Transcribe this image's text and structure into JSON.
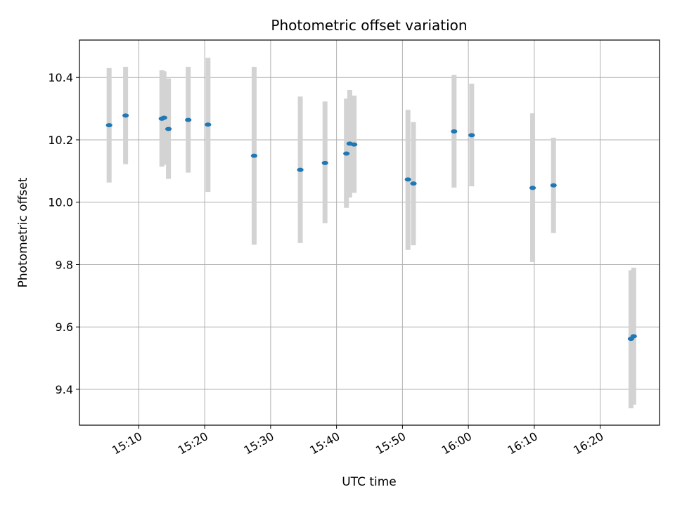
{
  "chart_data": {
    "type": "scatter",
    "title": "Photometric offset variation",
    "xlabel": "UTC time",
    "ylabel": "Photometric offset",
    "x_axis_type": "time",
    "xlim": [
      "15:01",
      "16:29"
    ],
    "ylim": [
      9.285,
      10.52
    ],
    "x_ticks": [
      "15:10",
      "15:20",
      "15:30",
      "15:40",
      "15:50",
      "16:00",
      "16:10",
      "16:20"
    ],
    "y_ticks": [
      9.4,
      9.6,
      9.8,
      10.0,
      10.2,
      10.4
    ],
    "y_tick_labels": [
      "9.4",
      "9.6",
      "9.8",
      "10.0",
      "10.2",
      "10.4"
    ],
    "grid": true,
    "marker_color": "#1f77b4",
    "errorbar_color": "#d3d3d3",
    "points": [
      {
        "time": "15:05:30",
        "y": 10.247,
        "ylow": 10.063,
        "yhigh": 10.43
      },
      {
        "time": "15:08:00",
        "y": 10.278,
        "ylow": 10.122,
        "yhigh": 10.434
      },
      {
        "time": "15:13:30",
        "y": 10.268,
        "ylow": 10.114,
        "yhigh": 10.423
      },
      {
        "time": "15:13:50",
        "y": 10.271,
        "ylow": 10.12,
        "yhigh": 10.42
      },
      {
        "time": "15:14:30",
        "y": 10.235,
        "ylow": 10.075,
        "yhigh": 10.397
      },
      {
        "time": "15:17:30",
        "y": 10.264,
        "ylow": 10.095,
        "yhigh": 10.434
      },
      {
        "time": "15:20:30",
        "y": 10.249,
        "ylow": 10.033,
        "yhigh": 10.463
      },
      {
        "time": "15:27:30",
        "y": 10.149,
        "ylow": 9.864,
        "yhigh": 10.434
      },
      {
        "time": "15:34:30",
        "y": 10.104,
        "ylow": 9.869,
        "yhigh": 10.339
      },
      {
        "time": "15:38:15",
        "y": 10.126,
        "ylow": 9.933,
        "yhigh": 10.323
      },
      {
        "time": "15:41:30",
        "y": 10.156,
        "ylow": 9.982,
        "yhigh": 10.332
      },
      {
        "time": "15:42:00",
        "y": 10.188,
        "ylow": 10.015,
        "yhigh": 10.36
      },
      {
        "time": "15:42:40",
        "y": 10.185,
        "ylow": 10.03,
        "yhigh": 10.342
      },
      {
        "time": "15:50:50",
        "y": 10.073,
        "ylow": 9.847,
        "yhigh": 10.296
      },
      {
        "time": "15:51:40",
        "y": 10.06,
        "ylow": 9.862,
        "yhigh": 10.257
      },
      {
        "time": "15:57:50",
        "y": 10.227,
        "ylow": 10.047,
        "yhigh": 10.408
      },
      {
        "time": "16:00:30",
        "y": 10.215,
        "ylow": 10.051,
        "yhigh": 10.38
      },
      {
        "time": "16:09:45",
        "y": 10.046,
        "ylow": 9.808,
        "yhigh": 10.285
      },
      {
        "time": "16:12:55",
        "y": 10.054,
        "ylow": 9.901,
        "yhigh": 10.207
      },
      {
        "time": "16:24:40",
        "y": 9.562,
        "ylow": 9.339,
        "yhigh": 9.782
      },
      {
        "time": "16:25:05",
        "y": 9.57,
        "ylow": 9.351,
        "yhigh": 9.79
      }
    ]
  }
}
